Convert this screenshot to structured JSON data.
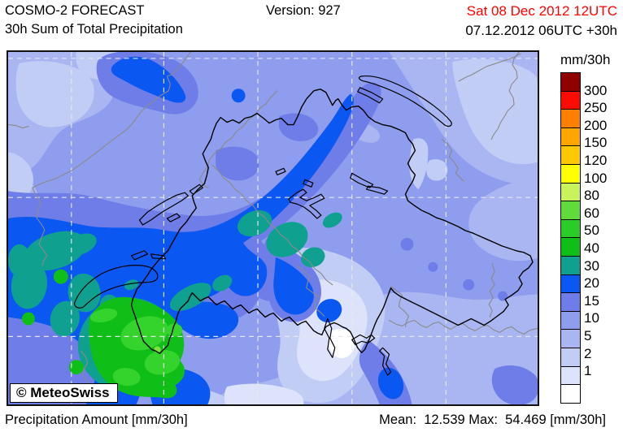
{
  "header": {
    "title_line1": "COSMO-2 FORECAST",
    "title_line2": "30h Sum of Total Precipitation",
    "version_label": "Version: 927",
    "valid_datetime": "Sat 08 Dec 2012 12UTC",
    "run_datetime": "07.12.2012 06UTC +30h"
  },
  "map": {
    "attribution": "© MeteoSwiss"
  },
  "scale": {
    "unit_label": "mm/30h",
    "labels": [
      "300",
      "250",
      "200",
      "150",
      "120",
      "100",
      "80",
      "60",
      "50",
      "40",
      "30",
      "20",
      "15",
      "10",
      "5",
      "2",
      "1"
    ],
    "colors": [
      "#900000",
      "#FB0B00",
      "#FF8000",
      "#FFA500",
      "#FFC800",
      "#FFFF00",
      "#C8F35A",
      "#5FDC3C",
      "#2ACC28",
      "#10BE18",
      "#0FA08F",
      "#0B57F1",
      "#6F7DE8",
      "#8E9DEE",
      "#A9B6F2",
      "#C2CDF6",
      "#DCE3FA",
      "#FFFFFF"
    ]
  },
  "footer": {
    "left_label": "Precipitation Amount [mm/30h]",
    "stats": "Mean:  12.539 Max:  54.469 [mm/30h]"
  },
  "palette": {
    "below1": "#FFFFFF",
    "v1_2": "#DCE3FA",
    "v2_5": "#C2CDF6",
    "v5_10": "#A9B6F2",
    "v10_15": "#8E9DEE",
    "v15_20": "#6F7DE8",
    "v20_30": "#0B57F1",
    "v30_40": "#0FA08F",
    "v40_50": "#10BE18",
    "v50_60": "#35D42C",
    "v60_80": "#7FE03C",
    "date_red": "#FF0000"
  }
}
